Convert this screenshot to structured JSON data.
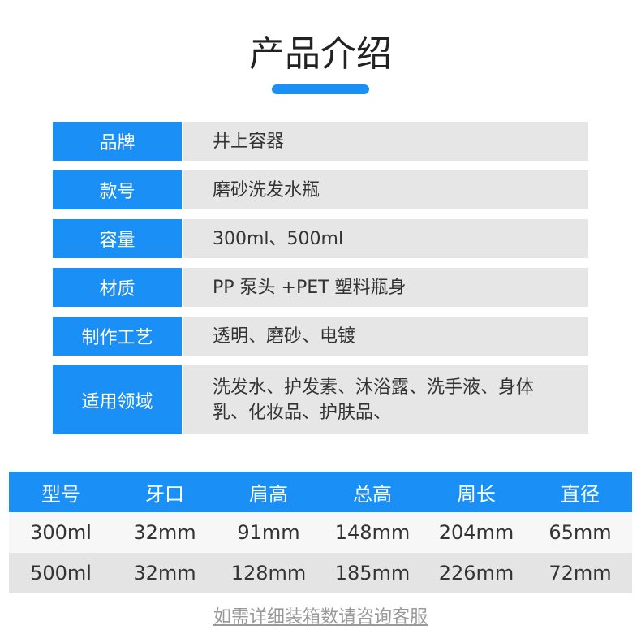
{
  "title": "产品介绍",
  "accent": "#1a8ff5",
  "info": [
    {
      "label": "品牌",
      "value": "井上容器"
    },
    {
      "label": "款号",
      "value": "磨砂洗发水瓶"
    },
    {
      "label": "容量",
      "value": "300ml、500ml"
    },
    {
      "label": "材质",
      "value": "PP 泵头 +PET 塑料瓶身"
    },
    {
      "label": "制作工艺",
      "value": "透明、磨砂、电镀"
    },
    {
      "label": "适用领域",
      "value": "洗发水、护发素、沐浴露、洗手液、身体乳、化妆品、护肤品、"
    }
  ],
  "spec": {
    "headers": [
      "型号",
      "牙口",
      "肩高",
      "总高",
      "周长",
      "直径"
    ],
    "rows": [
      [
        "300ml",
        "32mm",
        "91mm",
        "148mm",
        "204mm",
        "65mm"
      ],
      [
        "500ml",
        "32mm",
        "128mm",
        "185mm",
        "226mm",
        "72mm"
      ]
    ]
  },
  "footer": "如需详细装箱数请咨询客服"
}
